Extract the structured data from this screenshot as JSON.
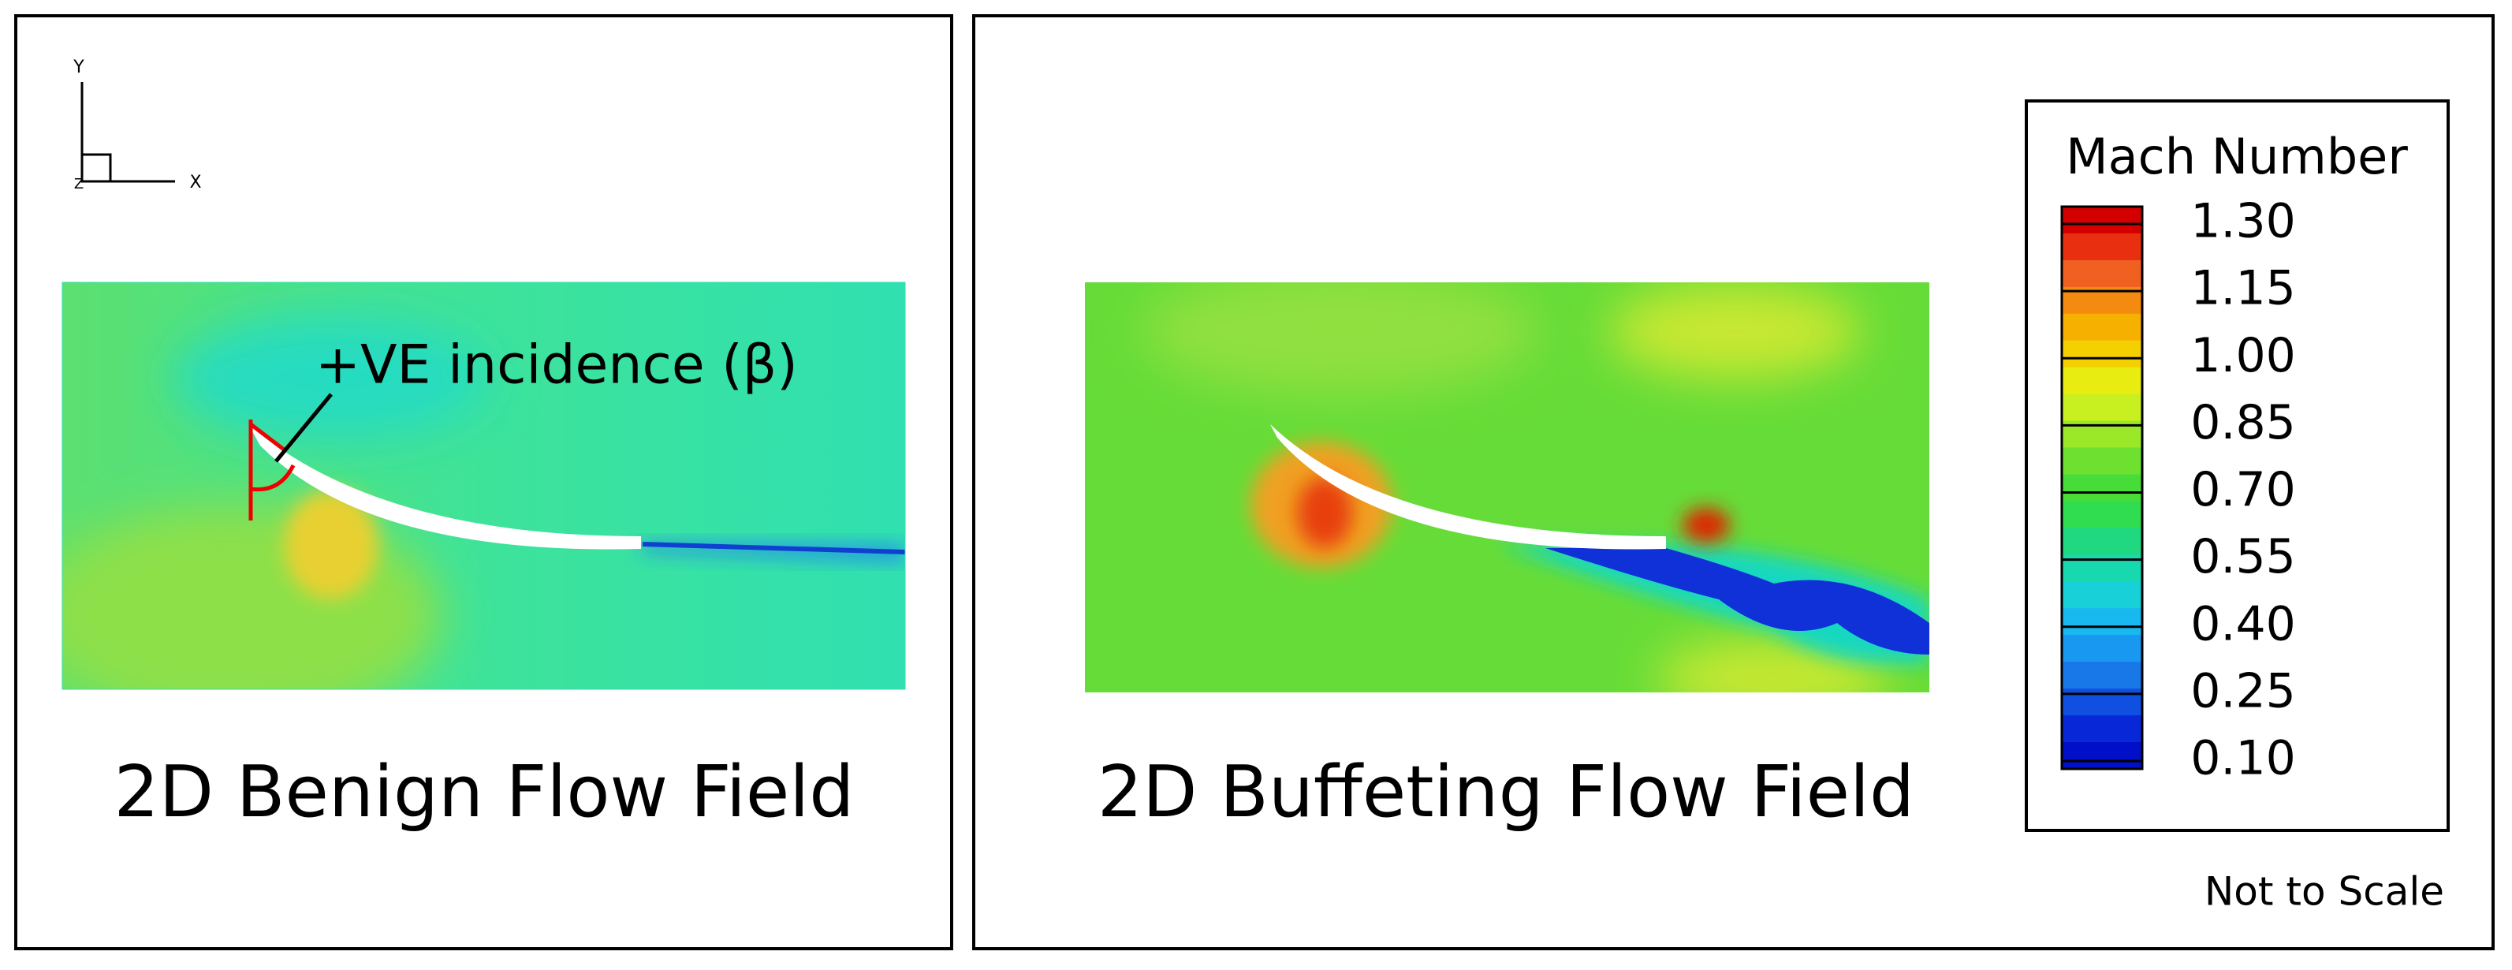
{
  "panels": [
    {
      "title": "2D Benign Flow Field",
      "annotation": "+VE incidence (β)",
      "axes": {
        "y": "Y",
        "x": "X",
        "z": "Z"
      }
    },
    {
      "title": "2D Buffeting Flow Field"
    }
  ],
  "legend": {
    "title": "Mach Number",
    "ticks": [
      "1.30",
      "1.15",
      "1.00",
      "0.85",
      "0.70",
      "0.55",
      "0.40",
      "0.25",
      "0.10"
    ],
    "note": "Not to Scale"
  }
}
